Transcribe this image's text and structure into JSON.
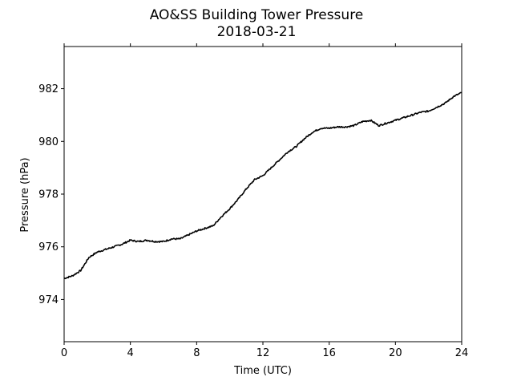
{
  "chart_data": {
    "type": "line",
    "title": "AO&SS Building Tower Pressure",
    "subtitle": "2018-03-21",
    "xlabel": "Time (UTC)",
    "ylabel": "Pressure (hPa)",
    "xlim": [
      0,
      24
    ],
    "ylim": [
      972.4,
      983.6
    ],
    "xticks": [
      0,
      4,
      8,
      12,
      16,
      20,
      24
    ],
    "yticks": [
      974,
      976,
      978,
      980,
      982
    ],
    "grid": false,
    "line_color": "#000000",
    "series": [
      {
        "x": [
          0,
          0.5,
          1,
          1.5,
          2,
          2.5,
          3,
          3.5,
          4,
          4.5,
          5,
          5.5,
          6,
          6.5,
          7,
          7.5,
          8,
          8.5,
          9,
          9.5,
          10,
          10.5,
          11,
          11.5,
          12,
          12.5,
          13,
          13.5,
          14,
          14.5,
          15,
          15.5,
          16,
          16.5,
          17,
          17.5,
          18,
          18.5,
          19,
          19.5,
          20,
          20.5,
          21,
          21.5,
          22,
          22.5,
          23,
          23.5,
          24
        ],
        "y": [
          974.8,
          974.9,
          975.1,
          975.6,
          975.8,
          975.9,
          976.0,
          976.1,
          976.25,
          976.2,
          976.25,
          976.2,
          976.2,
          976.3,
          976.3,
          976.45,
          976.6,
          976.7,
          976.8,
          977.15,
          977.45,
          977.8,
          978.2,
          978.55,
          978.7,
          979.0,
          979.3,
          979.6,
          979.8,
          980.1,
          980.35,
          980.5,
          980.5,
          980.55,
          980.55,
          980.6,
          980.75,
          980.8,
          980.6,
          980.7,
          980.8,
          980.9,
          981.0,
          981.1,
          981.15,
          981.3,
          981.45,
          981.7,
          981.85
        ]
      }
    ]
  }
}
